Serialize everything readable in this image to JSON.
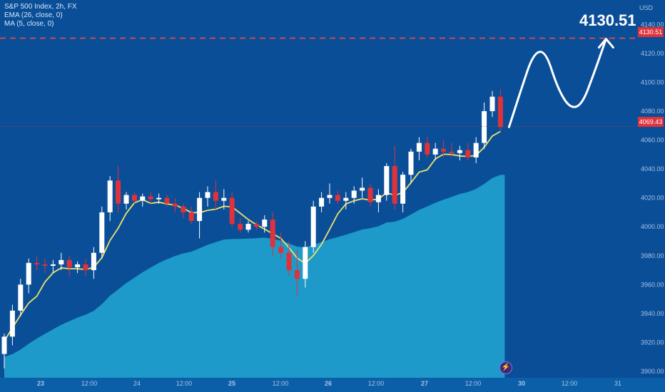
{
  "legend": {
    "line1": "S&P 500 Index, 2h, FX",
    "line2": "EMA (26, close, 0)",
    "line3": "MA (5, close, 0)"
  },
  "target_label": "4130.51",
  "axis": {
    "currency": "USD",
    "tag_target": "4130.51",
    "tag_price": "4069.43"
  },
  "colors": {
    "background": "#0a4e98",
    "area_fill": "#1fa3cf",
    "bull_candle": "#ffffff",
    "bear_candle": "#e0323a",
    "ma_line": "#f0e06a",
    "target_line": "#f04848"
  },
  "flash_icon": "lightning-icon",
  "chart_data": {
    "type": "candlestick",
    "title": "S&P 500 Index, 2h, FX",
    "ylim": [
      3900,
      4150
    ],
    "y_ticks": [
      "3900.00",
      "3920.00",
      "3940.00",
      "3960.00",
      "3980.00",
      "4000.00",
      "4020.00",
      "4040.00",
      "4060.00",
      "4080.00",
      "4100.00",
      "4120.00",
      "4140.00"
    ],
    "x_ticks": [
      "23",
      "12:00",
      "24",
      "12:00",
      "25",
      "12:00",
      "26",
      "12:00",
      "27",
      "12:00",
      "30",
      "12:00",
      "31"
    ],
    "target_price": 4130.51,
    "current_price": 4069.43,
    "candles": [
      [
        3912,
        3926,
        3902,
        3924
      ],
      [
        3924,
        3946,
        3918,
        3942
      ],
      [
        3942,
        3964,
        3938,
        3960
      ],
      [
        3960,
        3978,
        3954,
        3975
      ],
      [
        3975,
        3980,
        3970,
        3974
      ],
      [
        3974,
        3978,
        3968,
        3973
      ],
      [
        3973,
        3977,
        3968,
        3974
      ],
      [
        3974,
        3982,
        3970,
        3977
      ],
      [
        3977,
        3980,
        3966,
        3972
      ],
      [
        3972,
        3976,
        3968,
        3974
      ],
      [
        3974,
        3978,
        3966,
        3970
      ],
      [
        3970,
        3986,
        3964,
        3982
      ],
      [
        3982,
        4014,
        3978,
        4010
      ],
      [
        4010,
        4035,
        4004,
        4032
      ],
      [
        4032,
        4042,
        4010,
        4016
      ],
      [
        4016,
        4024,
        4012,
        4022
      ],
      [
        4022,
        4024,
        4016,
        4018
      ],
      [
        4018,
        4023,
        4014,
        4021
      ],
      [
        4021,
        4024,
        4016,
        4019
      ],
      [
        4019,
        4023,
        4016,
        4020
      ],
      [
        4020,
        4022,
        4014,
        4016
      ],
      [
        4016,
        4020,
        4010,
        4014
      ],
      [
        4014,
        4016,
        4006,
        4010
      ],
      [
        4010,
        4014,
        4002,
        4004
      ],
      [
        4004,
        4024,
        3992,
        4020
      ],
      [
        4020,
        4028,
        4014,
        4024
      ],
      [
        4024,
        4032,
        4012,
        4018
      ],
      [
        4018,
        4026,
        4012,
        4020
      ],
      [
        4020,
        4024,
        4000,
        4002
      ],
      [
        4002,
        4006,
        3996,
        3998
      ],
      [
        3998,
        4004,
        3996,
        4002
      ],
      [
        4002,
        4004,
        3998,
        4000
      ],
      [
        4000,
        4008,
        3996,
        4005
      ],
      [
        4005,
        4010,
        3980,
        3986
      ],
      [
        3986,
        3996,
        3978,
        3982
      ],
      [
        3982,
        3990,
        3966,
        3970
      ],
      [
        3970,
        3984,
        3952,
        3964
      ],
      [
        3964,
        3990,
        3958,
        3986
      ],
      [
        3986,
        4018,
        3982,
        4014
      ],
      [
        4014,
        4024,
        4010,
        4020
      ],
      [
        4020,
        4030,
        4016,
        4022
      ],
      [
        4022,
        4025,
        4016,
        4018
      ],
      [
        4018,
        4024,
        4012,
        4020
      ],
      [
        4020,
        4028,
        4016,
        4025
      ],
      [
        4025,
        4034,
        4020,
        4027
      ],
      [
        4027,
        4030,
        4014,
        4017
      ],
      [
        4017,
        4026,
        4010,
        4022
      ],
      [
        4022,
        4044,
        4018,
        4042
      ],
      [
        4042,
        4056,
        4012,
        4016
      ],
      [
        4016,
        4038,
        4010,
        4036
      ],
      [
        4036,
        4054,
        4030,
        4052
      ],
      [
        4052,
        4062,
        4046,
        4058
      ],
      [
        4058,
        4062,
        4048,
        4050
      ],
      [
        4050,
        4058,
        4046,
        4054
      ],
      [
        4054,
        4060,
        4048,
        4052
      ],
      [
        4052,
        4058,
        4048,
        4051
      ],
      [
        4051,
        4056,
        4046,
        4053
      ],
      [
        4053,
        4058,
        4046,
        4048
      ],
      [
        4048,
        4062,
        4044,
        4058
      ],
      [
        4058,
        4086,
        4054,
        4080
      ],
      [
        4080,
        4094,
        4076,
        4090
      ],
      [
        4090,
        4095,
        4066,
        4069
      ]
    ],
    "projection": [
      4069,
      4095,
      4120,
      4122,
      4096,
      4082,
      4084,
      4106,
      4130
    ]
  }
}
